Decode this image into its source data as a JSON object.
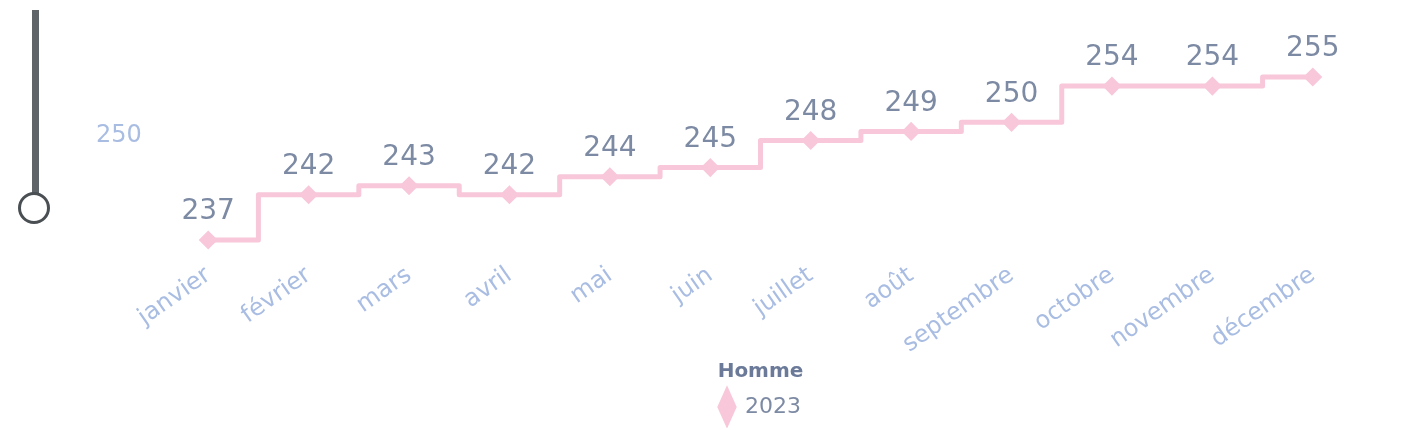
{
  "chart_data": {
    "type": "step",
    "categories": [
      "janvier",
      "février",
      "mars",
      "avril",
      "mai",
      "juin",
      "juillet",
      "août",
      "septembre",
      "octobre",
      "novembre",
      "décembre"
    ],
    "series": [
      {
        "name": "2023",
        "color": "#f8c8da",
        "values": [
          237,
          242,
          243,
          242,
          244,
          245,
          248,
          249,
          250,
          254,
          254,
          255
        ]
      }
    ],
    "legend_title": "Homme",
    "legend": "bottom",
    "data_labels": true,
    "marker": "diamond",
    "line_style": "solid",
    "grid": false,
    "annotations": [
      "250"
    ]
  }
}
